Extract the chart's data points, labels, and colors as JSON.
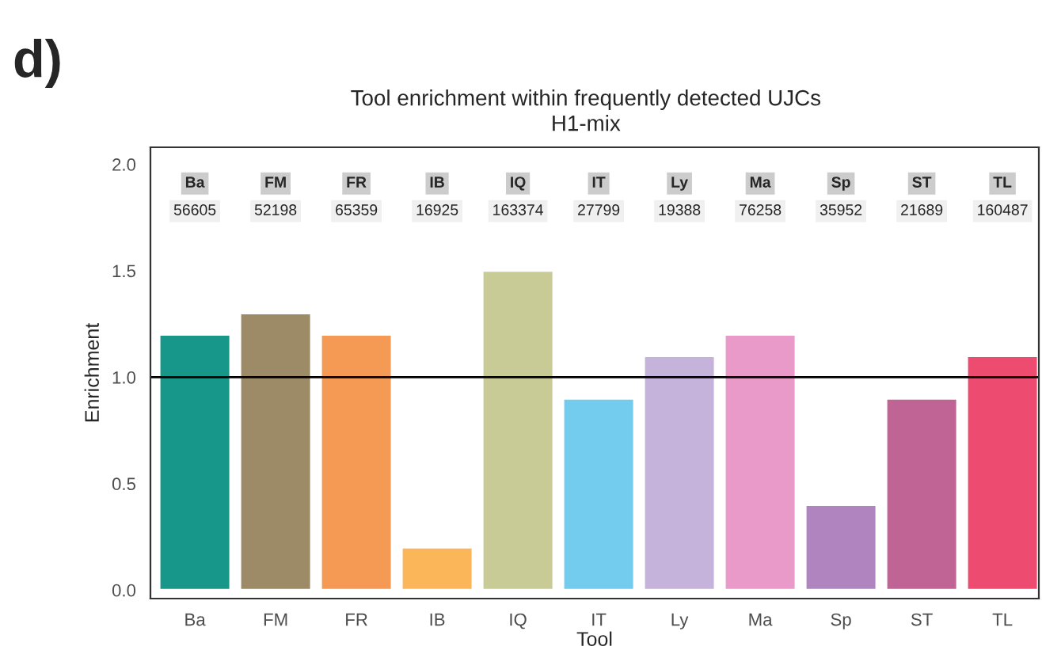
{
  "chart_data": {
    "type": "bar",
    "title": "Tool enrichment within frequently detected UJCs",
    "subtitle": "H1-mix",
    "xlabel": "Tool",
    "ylabel": "Enrichment",
    "categories": [
      "Ba",
      "FM",
      "FR",
      "IB",
      "IQ",
      "IT",
      "Ly",
      "Ma",
      "Sp",
      "ST",
      "TL"
    ],
    "values": [
      1.2,
      1.3,
      1.2,
      0.2,
      1.5,
      0.9,
      1.1,
      1.2,
      0.4,
      0.9,
      1.1
    ],
    "colors": [
      "#17968a",
      "#9d8b67",
      "#f59a55",
      "#fbb65a",
      "#c8cb96",
      "#73cbee",
      "#c5b3dc",
      "#e99ac8",
      "#b085bf",
      "#c06495",
      "#ee4b71"
    ],
    "ylim": [
      -0.04,
      2.08
    ],
    "yticks": [
      {
        "value": 0,
        "label": "0.0"
      },
      0.5,
      {
        "value": 1,
        "label": "1.0"
      },
      1.5,
      {
        "value": 2,
        "label": "2.0"
      }
    ],
    "ref_lines": [
      {
        "axis": "y",
        "value": 1,
        "label": null,
        "color": "#000000"
      }
    ],
    "annotations": [
      "d)",
      "56605",
      "52198",
      "65359",
      "16925",
      "163374",
      "27799",
      "19388",
      "76258",
      "35952",
      "21689",
      "160487"
    ],
    "grid": false,
    "legend": false
  }
}
